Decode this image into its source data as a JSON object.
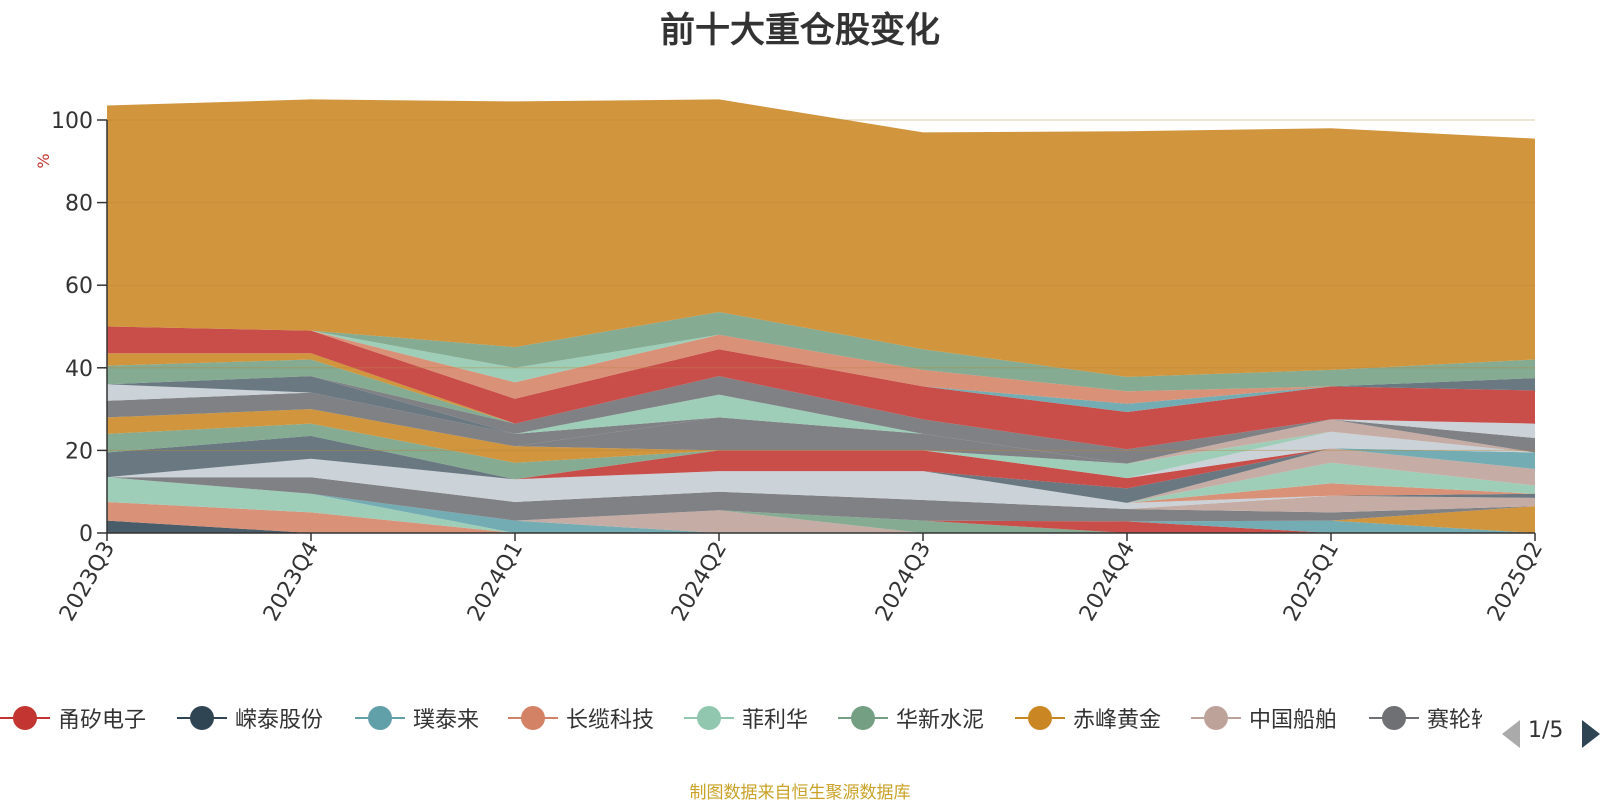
{
  "chart_data": {
    "type": "area",
    "stacked": true,
    "title": "前十大重仓股变化",
    "ylabel": "%",
    "ylim": [
      0,
      100
    ],
    "yticks": [
      "0",
      "20",
      "40",
      "60",
      "80",
      "100"
    ],
    "categories": [
      "2023Q3",
      "2023Q4",
      "2024Q1",
      "2024Q2",
      "2024Q3",
      "2024Q4",
      "2025Q1",
      "2025Q2"
    ],
    "series": [
      {
        "name": "",
        "color": "#2f4554",
        "values": [
          3,
          0,
          0,
          0,
          0,
          0,
          0,
          0
        ]
      },
      {
        "name": "",
        "color": "#d48265",
        "values": [
          4.5,
          5,
          0,
          0,
          0,
          0,
          0,
          0
        ]
      },
      {
        "name": "",
        "color": "#91c7ae",
        "values": [
          6,
          4.5,
          0,
          0,
          0,
          0,
          0,
          0
        ]
      },
      {
        "name": "",
        "color": "#61a0a8",
        "values": [
          0,
          0,
          3,
          0,
          0,
          0,
          0,
          0
        ]
      },
      {
        "name": "",
        "color": "#bda29a",
        "values": [
          0,
          0,
          0,
          5.5,
          0,
          0,
          0,
          0
        ]
      },
      {
        "name": "",
        "color": "#749f83",
        "values": [
          0,
          0,
          0,
          0,
          3,
          0,
          0,
          0
        ]
      },
      {
        "name": "",
        "color": "#c23531",
        "values": [
          0,
          0,
          0,
          0,
          0,
          2.8,
          0,
          0
        ]
      },
      {
        "name": "",
        "color": "#61a0a8",
        "values": [
          0,
          0,
          0,
          0,
          0,
          0,
          3,
          0
        ]
      },
      {
        "name": "",
        "color": "#ca8622",
        "values": [
          0,
          0,
          0,
          0,
          0,
          0,
          0,
          6.5
        ]
      },
      {
        "name": "",
        "color": "#6e7074",
        "values": [
          0,
          4,
          4.5,
          4.5,
          5,
          3,
          2,
          0
        ]
      },
      {
        "name": "",
        "color": "#bda29a",
        "values": [
          0,
          0,
          0,
          0,
          0,
          0,
          4,
          2
        ]
      },
      {
        "name": "",
        "color": "#546570",
        "values": [
          0,
          0,
          0,
          0,
          0,
          0,
          0,
          1
        ]
      },
      {
        "name": "",
        "color": "#c4ccd3",
        "values": [
          0,
          4.5,
          5.5,
          5,
          7,
          1.5,
          0,
          0
        ]
      },
      {
        "name": "",
        "color": "#d48265",
        "values": [
          0,
          0,
          0,
          0,
          0,
          0,
          3,
          0
        ]
      },
      {
        "name": "",
        "color": "#91c7ae",
        "values": [
          0,
          0,
          0,
          0,
          0,
          0,
          5,
          2
        ]
      },
      {
        "name": "",
        "color": "#bda29a",
        "values": [
          0,
          0,
          0,
          0,
          0,
          0,
          3.5,
          4
        ]
      },
      {
        "name": "",
        "color": "#61a0a8",
        "values": [
          0,
          0,
          0,
          0,
          0,
          0,
          0,
          4
        ]
      },
      {
        "name": "",
        "color": "#546570",
        "values": [
          6,
          5.5,
          0,
          0,
          0,
          3.5,
          0,
          0
        ]
      },
      {
        "name": "",
        "color": "#c23531",
        "values": [
          0,
          0,
          0,
          5,
          5,
          2.5,
          0,
          0
        ]
      },
      {
        "name": "",
        "color": "#749f83",
        "values": [
          4.5,
          3,
          4,
          0,
          0,
          0,
          0,
          0
        ]
      },
      {
        "name": "",
        "color": "#c4ccd3",
        "values": [
          0,
          0,
          0,
          0,
          0,
          0,
          4,
          0
        ]
      },
      {
        "name": "",
        "color": "#ca8622",
        "values": [
          4,
          3.5,
          4,
          0,
          0,
          0,
          0,
          0
        ]
      },
      {
        "name": "",
        "color": "#91c7ae",
        "values": [
          0,
          0,
          0,
          0,
          0,
          3.5,
          0,
          0
        ]
      },
      {
        "name": "",
        "color": "#bda29a",
        "values": [
          0,
          0,
          0,
          0,
          0,
          0,
          3,
          0
        ]
      },
      {
        "name": "",
        "color": "#6e7074",
        "values": [
          0,
          0,
          0,
          8,
          4,
          0,
          0,
          0
        ]
      },
      {
        "name": "",
        "color": "#6e7074",
        "values": [
          4,
          4,
          3,
          0,
          0,
          0,
          0,
          3.5
        ]
      },
      {
        "name": "",
        "color": "#91c7ae",
        "values": [
          0,
          0,
          0,
          5.5,
          0,
          0,
          0,
          0
        ]
      },
      {
        "name": "",
        "color": "#c4ccd3",
        "values": [
          4,
          0,
          0,
          0,
          0,
          0,
          0,
          3.5
        ]
      },
      {
        "name": "",
        "color": "#546570",
        "values": [
          0,
          4,
          0,
          0,
          0,
          0,
          0,
          0
        ]
      },
      {
        "name": "",
        "color": "#6e7074",
        "values": [
          0,
          0,
          2.5,
          4.5,
          3.5,
          3.5,
          0,
          0
        ]
      },
      {
        "name": "",
        "color": "#749f83",
        "values": [
          4.5,
          4,
          0,
          0,
          0,
          0,
          0,
          0
        ]
      },
      {
        "name": "",
        "color": "#ca8622",
        "values": [
          3,
          1.5,
          0,
          0,
          0,
          0,
          0,
          0
        ]
      },
      {
        "name": "",
        "color": "#c23531",
        "values": [
          6.5,
          5.5,
          6,
          6.5,
          8,
          9,
          8,
          8
        ]
      },
      {
        "name": "",
        "color": "#546570",
        "values": [
          0,
          0,
          0,
          0,
          0,
          0,
          0,
          3
        ]
      },
      {
        "name": "",
        "color": "#61a0a8",
        "values": [
          0,
          0,
          0,
          0,
          0,
          2,
          0,
          0
        ]
      },
      {
        "name": "",
        "color": "#d48265",
        "values": [
          0,
          0,
          4,
          3.5,
          4,
          3,
          0,
          0
        ]
      },
      {
        "name": "",
        "color": "#91c7ae",
        "values": [
          0,
          0,
          3.5,
          0,
          0,
          0,
          0,
          0
        ]
      },
      {
        "name": "",
        "color": "#749f83",
        "values": [
          0,
          0,
          5,
          5.5,
          5,
          3.5,
          4,
          4.5
        ]
      },
      {
        "name": "",
        "color": "#ca8622",
        "values": [
          53.5,
          56,
          59.5,
          51.5,
          52.5,
          59.5,
          58.5,
          53.5
        ]
      }
    ],
    "legend": {
      "items": [
        {
          "label": "甬矽电子",
          "color": "#c23531"
        },
        {
          "label": "嵘泰股份",
          "color": "#2f4554"
        },
        {
          "label": "璞泰来",
          "color": "#61a0a8"
        },
        {
          "label": "长缆科技",
          "color": "#d48265"
        },
        {
          "label": "菲利华",
          "color": "#91c7ae"
        },
        {
          "label": "华新水泥",
          "color": "#749f83"
        },
        {
          "label": "赤峰黄金",
          "color": "#ca8622"
        },
        {
          "label": "中国船舶",
          "color": "#bda29a"
        },
        {
          "label": "赛轮轮胎",
          "color": "#6e7074"
        }
      ],
      "page": "1/5"
    },
    "source_note": "制图数据来自恒生聚源数据库"
  }
}
